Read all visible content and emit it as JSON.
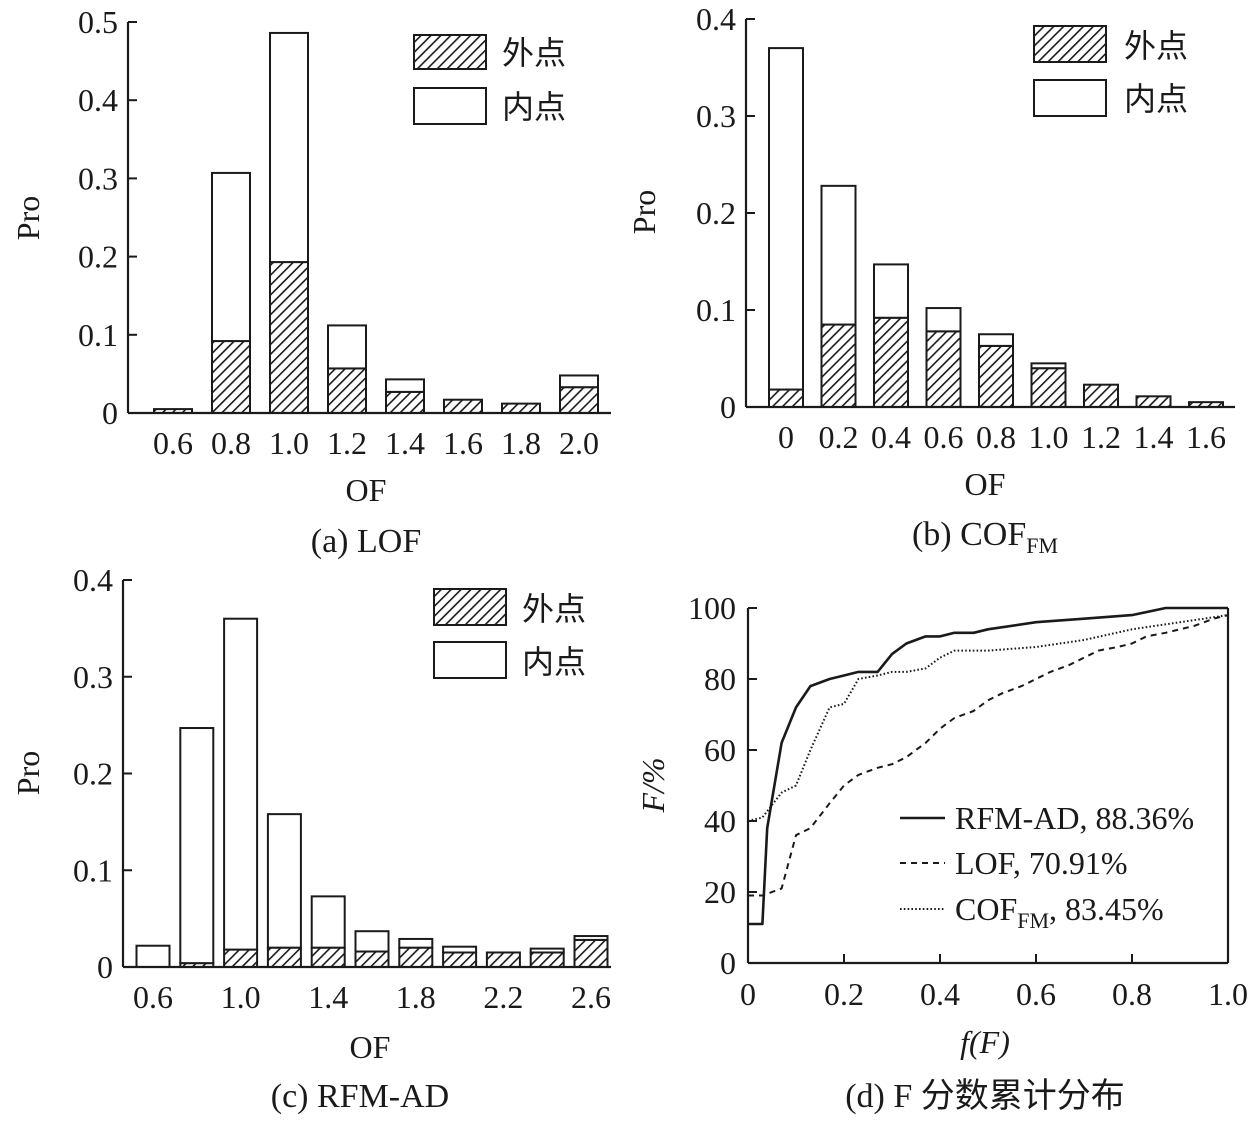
{
  "colors": {
    "ink": "#1a1a1a",
    "background": "#ffffff"
  },
  "chart_data": [
    {
      "type": "bar",
      "caption": "(a) LOF",
      "xlabel": "OF",
      "ylabel": "Pro",
      "categories": [
        "0.6",
        "0.8",
        "1.0",
        "1.2",
        "1.4",
        "1.6",
        "1.8",
        "2.0"
      ],
      "yticks": [
        "0",
        "0.1",
        "0.2",
        "0.3",
        "0.4",
        "0.5"
      ],
      "ylim": [
        0,
        0.5
      ],
      "stacked": true,
      "legend_position": "top-right",
      "series": [
        {
          "name": "外点",
          "pattern": "hatched",
          "values": [
            0.005,
            0.092,
            0.193,
            0.057,
            0.027,
            0.017,
            0.012,
            0.033
          ]
        },
        {
          "name": "内点",
          "pattern": "white",
          "values": [
            0.0,
            0.215,
            0.293,
            0.055,
            0.016,
            0.0,
            0.0,
            0.015
          ]
        }
      ]
    },
    {
      "type": "bar",
      "caption": "(b) COF",
      "caption_sub": "FM",
      "xlabel": "OF",
      "ylabel": "Pro",
      "categories": [
        "0",
        "0.2",
        "0.4",
        "0.6",
        "0.8",
        "1.0",
        "1.2",
        "1.4",
        "1.6"
      ],
      "yticks": [
        "0",
        "0.1",
        "0.2",
        "0.3",
        "0.4"
      ],
      "ylim": [
        0,
        0.4
      ],
      "stacked": true,
      "legend_position": "top-right",
      "series": [
        {
          "name": "外点",
          "pattern": "hatched",
          "values": [
            0.018,
            0.085,
            0.092,
            0.078,
            0.063,
            0.04,
            0.023,
            0.011,
            0.005
          ]
        },
        {
          "name": "内点",
          "pattern": "white",
          "values": [
            0.352,
            0.143,
            0.055,
            0.024,
            0.012,
            0.005,
            0.0,
            0.0,
            0.0
          ]
        }
      ]
    },
    {
      "type": "bar",
      "caption": "(c) RFM-AD",
      "xlabel": "OF",
      "ylabel": "Pro",
      "categories": [
        "0.6",
        "",
        "1.0",
        "",
        "1.4",
        "",
        "1.8",
        "",
        "2.2",
        "",
        "2.6"
      ],
      "yticks": [
        "0",
        "0.1",
        "0.2",
        "0.3",
        "0.4"
      ],
      "ylim": [
        0,
        0.4
      ],
      "stacked": true,
      "legend_position": "top-right",
      "series": [
        {
          "name": "外点",
          "pattern": "hatched",
          "values": [
            0.0,
            0.004,
            0.018,
            0.02,
            0.02,
            0.016,
            0.02,
            0.015,
            0.015,
            0.015,
            0.028
          ]
        },
        {
          "name": "内点",
          "pattern": "white",
          "values": [
            0.022,
            0.243,
            0.342,
            0.138,
            0.053,
            0.021,
            0.009,
            0.006,
            0.0,
            0.004,
            0.004
          ]
        }
      ]
    },
    {
      "type": "line",
      "caption": "(d) F 分数累计分布",
      "xlabel": "f(F)",
      "ylabel": "F/%",
      "xticks": [
        "0",
        "0.2",
        "0.4",
        "0.6",
        "0.8",
        "1.0"
      ],
      "yticks": [
        "0",
        "20",
        "40",
        "60",
        "80",
        "100"
      ],
      "xlim": [
        0,
        1
      ],
      "ylim": [
        0,
        100
      ],
      "legend_position": "bottom-right",
      "series": [
        {
          "name": "RFM-AD, 88.36%",
          "style": "solid",
          "x": [
            0,
            0.03,
            0.04,
            0.07,
            0.1,
            0.13,
            0.17,
            0.2,
            0.23,
            0.27,
            0.3,
            0.33,
            0.37,
            0.4,
            0.43,
            0.47,
            0.5,
            0.6,
            0.7,
            0.8,
            0.87,
            0.93,
            1.0
          ],
          "y": [
            11,
            11,
            38,
            62,
            72,
            78,
            80,
            81,
            82,
            82,
            87,
            90,
            92,
            92,
            93,
            93,
            94,
            96,
            97,
            98,
            100,
            100,
            100
          ]
        },
        {
          "name": "LOF, 70.91%",
          "style": "dashed",
          "x": [
            0,
            0.03,
            0.07,
            0.1,
            0.13,
            0.17,
            0.2,
            0.23,
            0.27,
            0.3,
            0.33,
            0.37,
            0.4,
            0.43,
            0.47,
            0.5,
            0.53,
            0.57,
            0.6,
            0.63,
            0.67,
            0.7,
            0.73,
            0.77,
            0.8,
            0.83,
            0.87,
            0.9,
            0.93,
            0.97,
            1.0
          ],
          "y": [
            19,
            19,
            21,
            36,
            38,
            45,
            50,
            53,
            55,
            56,
            58,
            62,
            66,
            69,
            71,
            74,
            76,
            78,
            80,
            82,
            84,
            86,
            88,
            89,
            90,
            92,
            93,
            94,
            95,
            97,
            98
          ]
        },
        {
          "name": "COF",
          "name_sub": "FM",
          "name_suffix": ", 83.45%",
          "style": "dotted",
          "x": [
            0,
            0.03,
            0.07,
            0.1,
            0.13,
            0.17,
            0.2,
            0.23,
            0.27,
            0.3,
            0.33,
            0.37,
            0.4,
            0.43,
            0.47,
            0.5,
            0.6,
            0.7,
            0.8,
            0.9,
            1.0
          ],
          "y": [
            40,
            41,
            48,
            50,
            60,
            72,
            73,
            80,
            81,
            82,
            82,
            83,
            86,
            88,
            88,
            88,
            89,
            91,
            94,
            96,
            98
          ]
        }
      ]
    }
  ]
}
